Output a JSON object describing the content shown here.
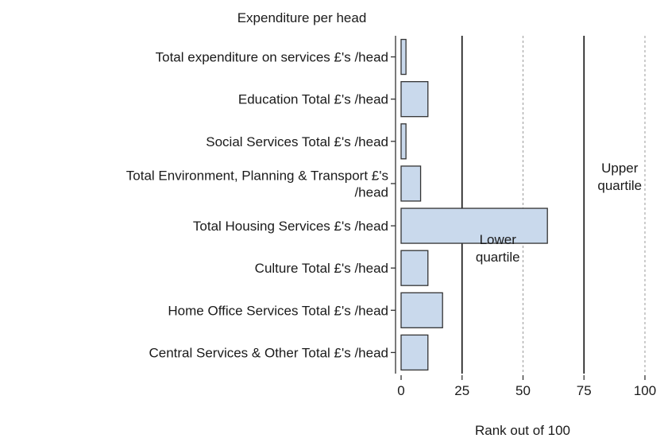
{
  "chart_data": {
    "type": "bar",
    "orientation": "horizontal",
    "title": "Expenditure per head",
    "xlabel": "Rank out of 100",
    "ylabel": "",
    "xlim": [
      0,
      100
    ],
    "xticks": [
      0,
      25,
      50,
      75,
      100
    ],
    "categories": [
      "Total expenditure on services  £'s /head",
      "Education Total  £'s /head",
      "Social Services Total  £'s /head",
      "Total Environment, Planning & Transport  £'s /head",
      "Total Housing Services  £'s /head",
      "Culture Total  £'s /head",
      "Home Office Services Total  £'s /head",
      "Central Services & Other Total  £'s /head"
    ],
    "category_lines": [
      [
        "Total expenditure on services  £'s /head"
      ],
      [
        "Education Total  £'s /head"
      ],
      [
        "Social Services Total  £'s /head"
      ],
      [
        "Total Environment, Planning & Transport  £'s",
        "/head"
      ],
      [
        "Total Housing Services  £'s /head"
      ],
      [
        "Culture Total  £'s /head"
      ],
      [
        "Home Office Services Total  £'s /head"
      ],
      [
        "Central Services & Other Total  £'s /head"
      ]
    ],
    "values": [
      2,
      11,
      2,
      8,
      60,
      11,
      17,
      11
    ],
    "reference_lines": [
      {
        "value": 25,
        "style": "solid"
      },
      {
        "value": 50,
        "style": "dotted"
      },
      {
        "value": 75,
        "style": "solid"
      },
      {
        "value": 100,
        "style": "dotted"
      }
    ],
    "annotations": [
      {
        "lines": [
          "Lower",
          "quartile"
        ],
        "x": 25
      },
      {
        "lines": [
          "Upper",
          "quartile"
        ],
        "x": 75
      }
    ],
    "colors": {
      "bar_fill": "#c9d9ec",
      "bar_stroke": "#333333",
      "axis": "#333333",
      "ref_solid": "#111111",
      "ref_dotted": "#9a9a9a"
    }
  }
}
